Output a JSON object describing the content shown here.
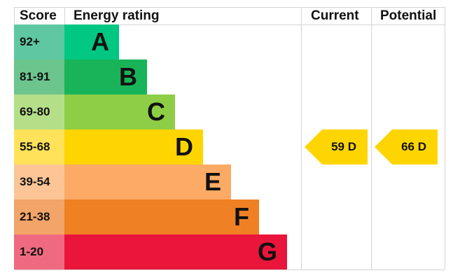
{
  "chart_data": {
    "type": "bar",
    "headers": {
      "score": "Score",
      "rating": "Energy rating",
      "current": "Current",
      "potential": "Potential"
    },
    "bands": [
      {
        "score": "92+",
        "letter": "A",
        "color": "#00c781",
        "score_color": "#5fc8a3"
      },
      {
        "score": "81-91",
        "letter": "B",
        "color": "#19b459",
        "score_color": "#6bc58d"
      },
      {
        "score": "69-80",
        "letter": "C",
        "color": "#8dce46",
        "score_color": "#b4df88"
      },
      {
        "score": "55-68",
        "letter": "D",
        "color": "#ffd500",
        "score_color": "#ffe25a"
      },
      {
        "score": "39-54",
        "letter": "E",
        "color": "#fcaa65",
        "score_color": "#fdc596"
      },
      {
        "score": "21-38",
        "letter": "F",
        "color": "#ef8023",
        "score_color": "#f3a468"
      },
      {
        "score": "1-20",
        "letter": "G",
        "color": "#e9153b",
        "score_color": "#ef6a80"
      }
    ],
    "current": {
      "value": 59,
      "band": "D",
      "label": "59  D",
      "color": "#ffd500"
    },
    "potential": {
      "value": 66,
      "band": "D",
      "label": "66  D",
      "color": "#ffd500"
    }
  }
}
